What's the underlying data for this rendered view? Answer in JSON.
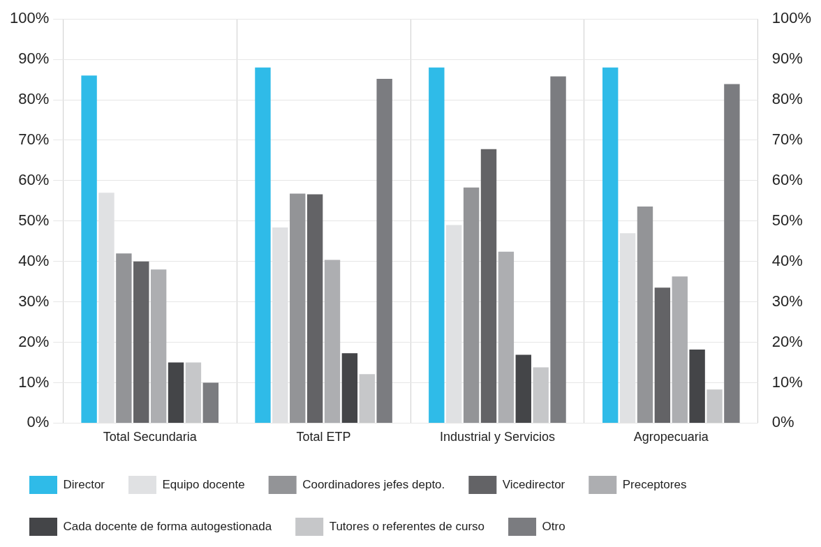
{
  "chart_data": {
    "type": "bar",
    "categories": [
      "Total Secundaria",
      "Total ETP",
      "Industrial y Servicios",
      "Agropecuaria"
    ],
    "series": [
      {
        "name": "Director",
        "color": "#2fbbe8",
        "values": [
          86,
          88,
          88,
          88
        ]
      },
      {
        "name": "Equipo docente",
        "color": "#e0e1e3",
        "values": [
          57,
          48.4,
          49,
          47
        ]
      },
      {
        "name": "Coordinadores jefes depto.",
        "color": "#939497",
        "values": [
          42,
          56.8,
          58.3,
          53.6
        ]
      },
      {
        "name": "Vicedirector",
        "color": "#636366",
        "values": [
          40,
          56.6,
          67.8,
          33.5
        ]
      },
      {
        "name": "Preceptores",
        "color": "#adaeb1",
        "values": [
          38,
          40.4,
          42.4,
          36.3
        ]
      },
      {
        "name": "Cada docente de forma autogestionada",
        "color": "#444548",
        "values": [
          15,
          17.3,
          16.9,
          18.2
        ]
      },
      {
        "name": "Tutores o referentes de curso",
        "color": "#c6c7c9",
        "values": [
          15,
          12.1,
          13.8,
          8.3
        ]
      },
      {
        "name": "Otro",
        "color": "#7b7c80",
        "values": [
          10,
          85.2,
          85.8,
          83.9
        ]
      }
    ],
    "ylim": [
      0,
      100
    ],
    "yticks": [
      {
        "value": 0,
        "label": "0%"
      },
      {
        "value": 10,
        "label": "10%"
      },
      {
        "value": 20,
        "label": "20%"
      },
      {
        "value": 30,
        "label": "30%"
      },
      {
        "value": 40,
        "label": "40%"
      },
      {
        "value": 50,
        "label": "50%"
      },
      {
        "value": 60,
        "label": "60%"
      },
      {
        "value": 70,
        "label": "70%"
      },
      {
        "value": 80,
        "label": "80%"
      },
      {
        "value": 90,
        "label": "90%"
      },
      {
        "value": 100,
        "label": "100%"
      }
    ],
    "y2lim": [
      0,
      100
    ],
    "y2ticks": [
      {
        "value": 0,
        "label": "0%"
      },
      {
        "value": 10,
        "label": "10%"
      },
      {
        "value": 20,
        "label": "20%"
      },
      {
        "value": 30,
        "label": "30%"
      },
      {
        "value": 40,
        "label": "40%"
      },
      {
        "value": 50,
        "label": "50%"
      },
      {
        "value": 60,
        "label": "60%"
      },
      {
        "value": 70,
        "label": "70%"
      },
      {
        "value": 80,
        "label": "80%"
      },
      {
        "value": 90,
        "label": "90%"
      },
      {
        "value": 100,
        "label": "100%"
      }
    ],
    "grid": true,
    "legend": "bottom"
  }
}
